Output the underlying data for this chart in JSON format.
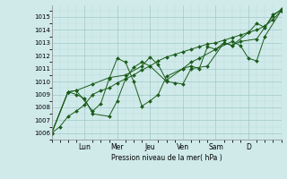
{
  "bg_color": "#d0eaea",
  "grid_color_major": "#a0c8c8",
  "grid_color_minor": "#b8d8d8",
  "line_color": "#1a5c1a",
  "marker_color": "#1a5c1a",
  "xlabel": "Pression niveau de la mer( hPa )",
  "ylim": [
    1005.5,
    1015.9
  ],
  "yticks": [
    1006,
    1007,
    1008,
    1009,
    1010,
    1011,
    1012,
    1013,
    1014,
    1015
  ],
  "day_labels": [
    "Lun",
    "Mer",
    "Jeu",
    "Ven",
    "Sam",
    "D"
  ],
  "series": [
    {
      "x": [
        0,
        1,
        2,
        3,
        4,
        5,
        6,
        7,
        8,
        9,
        10,
        11,
        12,
        13,
        14,
        15,
        16,
        17,
        18,
        19,
        20,
        21,
        22,
        23,
        24,
        25,
        26,
        27,
        28
      ],
      "y": [
        1006.0,
        1006.5,
        1007.3,
        1007.7,
        1008.2,
        1009.0,
        1009.3,
        1009.5,
        1009.9,
        1010.2,
        1010.5,
        1010.9,
        1011.2,
        1011.6,
        1011.9,
        1012.1,
        1012.3,
        1012.5,
        1012.7,
        1012.9,
        1013.0,
        1013.2,
        1013.4,
        1013.6,
        1013.8,
        1014.0,
        1014.3,
        1014.8,
        1015.5
      ]
    },
    {
      "x": [
        0,
        2,
        3,
        4,
        5,
        7,
        8,
        9,
        10,
        11,
        12,
        14,
        15,
        16,
        17,
        19,
        21,
        22,
        23,
        25,
        27,
        28
      ],
      "y": [
        1006.0,
        1009.2,
        1009.0,
        1008.7,
        1007.5,
        1007.3,
        1008.5,
        1010.2,
        1011.1,
        1011.5,
        1011.2,
        1010.0,
        1009.9,
        1009.8,
        1011.0,
        1011.2,
        1013.0,
        1012.8,
        1013.1,
        1013.3,
        1015.1,
        1015.6
      ]
    },
    {
      "x": [
        0,
        2,
        3,
        5,
        6,
        7,
        8,
        9,
        10,
        11,
        12,
        13,
        14,
        16,
        17,
        18,
        19,
        20,
        21,
        22,
        24,
        25,
        26,
        27,
        28
      ],
      "y": [
        1006.0,
        1009.2,
        1009.3,
        1007.7,
        1008.3,
        1010.2,
        1011.8,
        1011.5,
        1010.0,
        1008.1,
        1008.5,
        1009.0,
        1010.4,
        1011.0,
        1011.2,
        1011.0,
        1012.7,
        1012.5,
        1013.0,
        1012.8,
        1013.8,
        1014.5,
        1014.2,
        1015.2,
        1015.5
      ]
    },
    {
      "x": [
        0,
        2,
        3,
        5,
        7,
        9,
        11,
        12,
        13,
        14,
        16,
        17,
        18,
        20,
        22,
        23,
        24,
        25,
        26,
        28
      ],
      "y": [
        1006.0,
        1009.2,
        1009.3,
        1009.8,
        1010.3,
        1010.5,
        1011.2,
        1011.9,
        1011.3,
        1010.1,
        1011.0,
        1011.5,
        1011.8,
        1012.5,
        1013.1,
        1012.8,
        1011.8,
        1011.6,
        1013.5,
        1015.5
      ]
    }
  ],
  "day_tick_positions": [
    4,
    8,
    12,
    16,
    20,
    24
  ],
  "xlim": [
    0,
    28
  ]
}
